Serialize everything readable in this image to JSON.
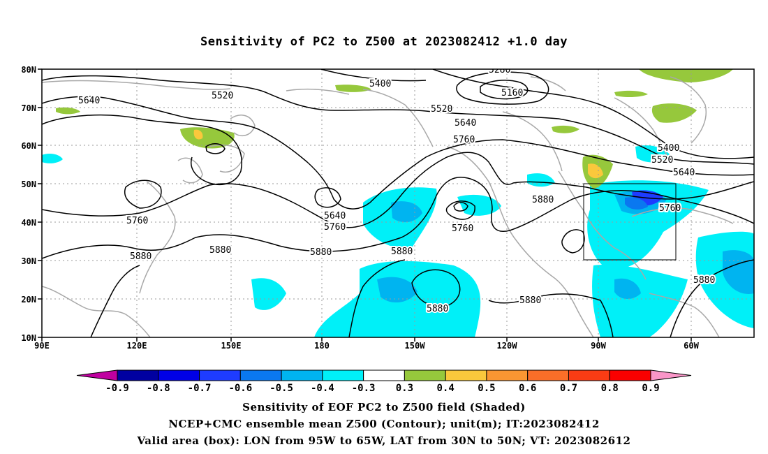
{
  "title": "Sensitivity of PC2 to Z500 at 2023082412 +1.0 day",
  "axes": {
    "lat_labels": [
      "80N",
      "70N",
      "60N",
      "50N",
      "40N",
      "30N",
      "20N",
      "10N"
    ],
    "lon_labels": [
      "90E",
      "120E",
      "150E",
      "180",
      "150W",
      "120W",
      "90W",
      "60W"
    ]
  },
  "contour_labels": [
    {
      "id": "c5280",
      "text": "5280"
    },
    {
      "id": "c5160",
      "text": "5160"
    },
    {
      "id": "c5400a",
      "text": "5400"
    },
    {
      "id": "c5520a",
      "text": "5520"
    },
    {
      "id": "c5640a",
      "text": "5640"
    },
    {
      "id": "c5520b",
      "text": "5520"
    },
    {
      "id": "c5640b",
      "text": "5640"
    },
    {
      "id": "c5760a",
      "text": "5760"
    },
    {
      "id": "c5400b",
      "text": "5400"
    },
    {
      "id": "c5520c",
      "text": "5520"
    },
    {
      "id": "c5640c",
      "text": "5640"
    },
    {
      "id": "c5760b",
      "text": "5760"
    },
    {
      "id": "c5880a",
      "text": "5880"
    },
    {
      "id": "c5640d",
      "text": "5640"
    },
    {
      "id": "c5760c",
      "text": "5760"
    },
    {
      "id": "c5880b",
      "text": "5880"
    },
    {
      "id": "c5760d",
      "text": "5760"
    },
    {
      "id": "c5760e",
      "text": "5760"
    },
    {
      "id": "c5880c",
      "text": "5880"
    },
    {
      "id": "c5880d",
      "text": "5880"
    },
    {
      "id": "c5880e",
      "text": "5880"
    },
    {
      "id": "c5880f",
      "text": "5880"
    },
    {
      "id": "c5880g",
      "text": "5880"
    },
    {
      "id": "c5880h",
      "text": "5880"
    }
  ],
  "colorbar": {
    "labels": [
      "-0.9",
      "-0.8",
      "-0.7",
      "-0.6",
      "-0.5",
      "-0.4",
      "-0.3",
      "0.3",
      "0.4",
      "0.5",
      "0.6",
      "0.7",
      "0.8",
      "0.9"
    ],
    "colors": [
      "#c000a0",
      "#0000a0",
      "#0000e6",
      "#1e3cff",
      "#0a78f0",
      "#00b4f0",
      "#00f0f8",
      "#ffffff",
      "#96c83c",
      "#fac83c",
      "#fa9632",
      "#fa6e28",
      "#fa3c14",
      "#fa0000",
      "#fa96c8"
    ]
  },
  "captions": [
    "Sensitivity of EOF PC2 to Z500 field (Shaded)",
    "NCEP+CMC ensemble mean Z500 (Contour); unit(m); IT:2023082412",
    "Valid area (box): LON from 95W to 65W, LAT from 30N to 50N; VT: 2023082612"
  ]
}
